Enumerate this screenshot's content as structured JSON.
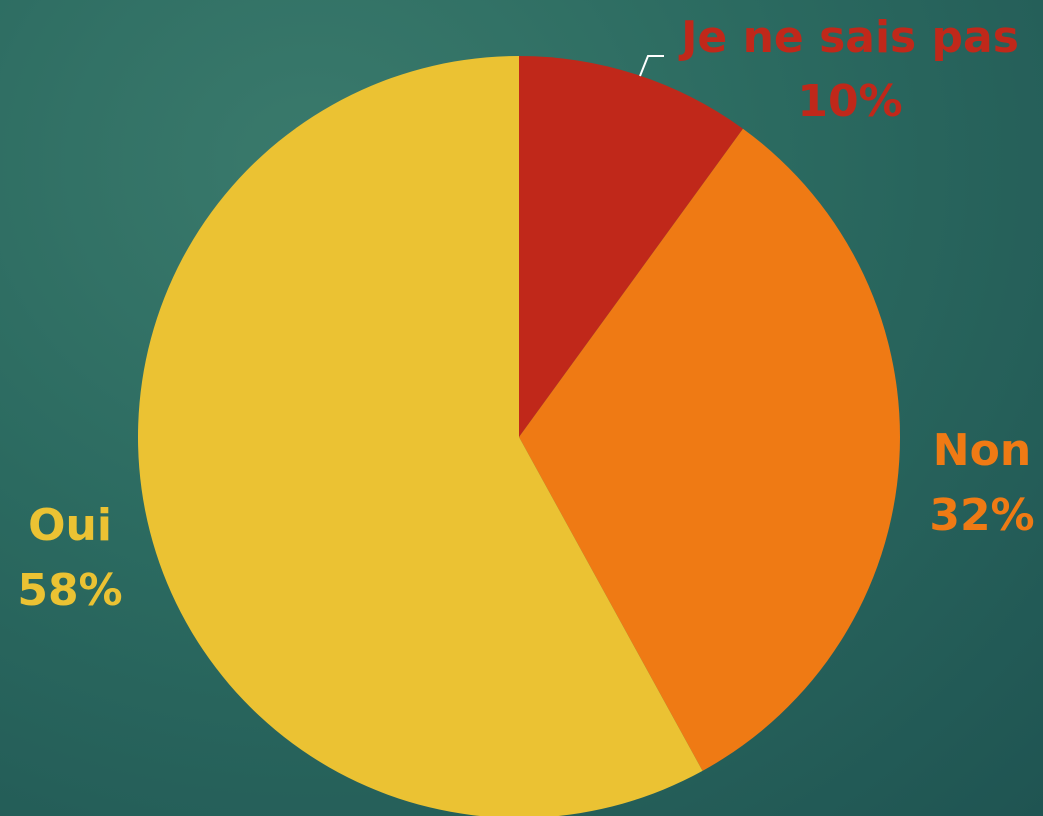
{
  "chart_data": {
    "type": "pie",
    "slices": [
      {
        "name": "Je ne sais pas",
        "value": 10,
        "percent_label": "10%",
        "color": "#c0281a"
      },
      {
        "name": "Non",
        "value": 32,
        "percent_label": "32%",
        "color": "#ef7a14"
      },
      {
        "name": "Oui",
        "value": 58,
        "percent_label": "58%",
        "color": "#ebc233"
      }
    ],
    "start_angle_deg": 0,
    "direction": "clockwise",
    "title": "",
    "legend": "none"
  },
  "colors": {
    "background": "#2b6a60",
    "leader_line": "#ffffff"
  }
}
